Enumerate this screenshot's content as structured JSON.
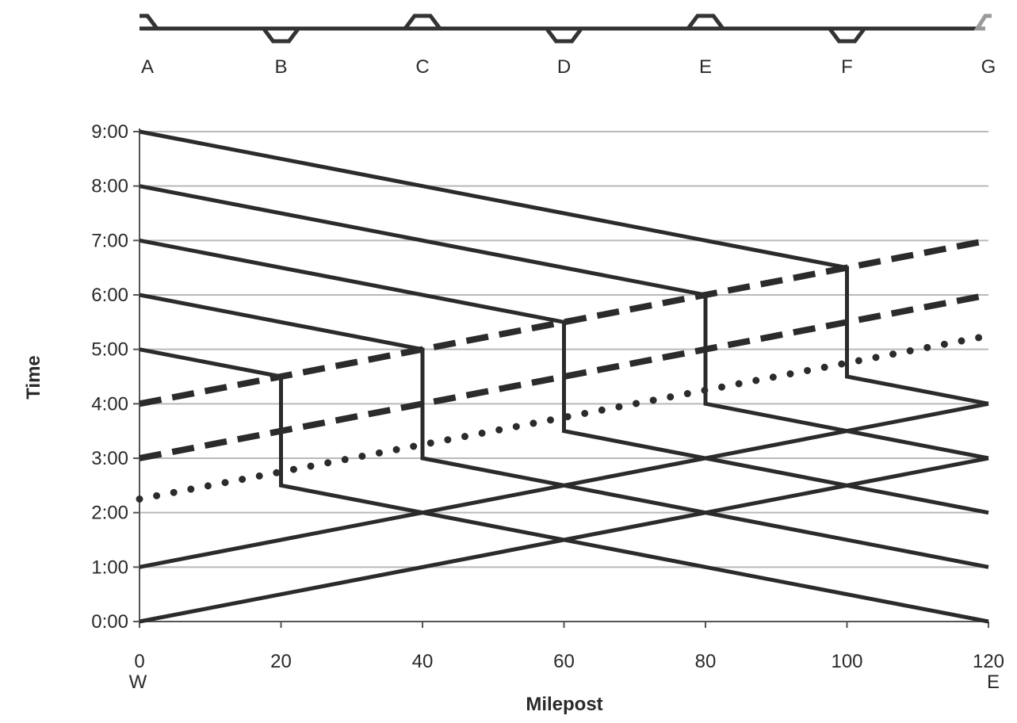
{
  "chart_data": {
    "type": "line",
    "title": "",
    "xlabel": "Milepost",
    "ylabel": "Time",
    "xlim": [
      0,
      120
    ],
    "ylim": [
      0,
      9
    ],
    "x_ticks": [
      "0",
      "20",
      "40",
      "60",
      "80",
      "100",
      "120"
    ],
    "y_ticks": [
      "0:00",
      "1:00",
      "2:00",
      "3:00",
      "4:00",
      "5:00",
      "6:00",
      "7:00",
      "8:00",
      "9:00"
    ],
    "x_end_labels": {
      "left": "W",
      "right": "E"
    },
    "grid": {
      "horizontal": true,
      "vertical": false
    },
    "track_diagram": {
      "stations": [
        {
          "label": "A",
          "milepost": 0,
          "siding": "end-left"
        },
        {
          "label": "B",
          "milepost": 20,
          "siding": "below"
        },
        {
          "label": "C",
          "milepost": 40,
          "siding": "above"
        },
        {
          "label": "D",
          "milepost": 60,
          "siding": "below"
        },
        {
          "label": "E",
          "milepost": 80,
          "siding": "above"
        },
        {
          "label": "F",
          "milepost": 100,
          "siding": "below"
        },
        {
          "label": "G",
          "milepost": 120,
          "siding": "end-right"
        }
      ]
    },
    "series": [
      {
        "style": "solid",
        "points": [
          [
            0,
            5
          ],
          [
            20,
            4.5
          ],
          [
            20,
            2.5
          ],
          [
            120,
            0
          ]
        ]
      },
      {
        "style": "solid",
        "points": [
          [
            0,
            6
          ],
          [
            40,
            5
          ],
          [
            40,
            3
          ],
          [
            120,
            1
          ]
        ]
      },
      {
        "style": "solid",
        "points": [
          [
            0,
            7
          ],
          [
            60,
            5.5
          ],
          [
            60,
            3.5
          ],
          [
            120,
            2
          ]
        ]
      },
      {
        "style": "solid",
        "points": [
          [
            0,
            8
          ],
          [
            80,
            6
          ],
          [
            80,
            4
          ],
          [
            120,
            3
          ]
        ]
      },
      {
        "style": "solid",
        "points": [
          [
            0,
            9
          ],
          [
            100,
            6.5
          ],
          [
            100,
            4.5
          ],
          [
            120,
            4
          ]
        ]
      },
      {
        "style": "solid",
        "points": [
          [
            0,
            0
          ],
          [
            120,
            3
          ]
        ]
      },
      {
        "style": "solid",
        "points": [
          [
            0,
            1
          ],
          [
            120,
            4
          ]
        ]
      },
      {
        "style": "dashed",
        "points": [
          [
            0,
            3
          ],
          [
            120,
            6
          ]
        ]
      },
      {
        "style": "dashed",
        "points": [
          [
            0,
            4
          ],
          [
            120,
            7
          ]
        ]
      },
      {
        "style": "dotted",
        "points": [
          [
            0,
            2.25
          ],
          [
            120,
            5.25
          ]
        ]
      }
    ],
    "colors": {
      "line": "#2b2b2b",
      "grid": "#b9b9b9",
      "track": "#333333",
      "track_end": "#9a9a9a"
    }
  }
}
